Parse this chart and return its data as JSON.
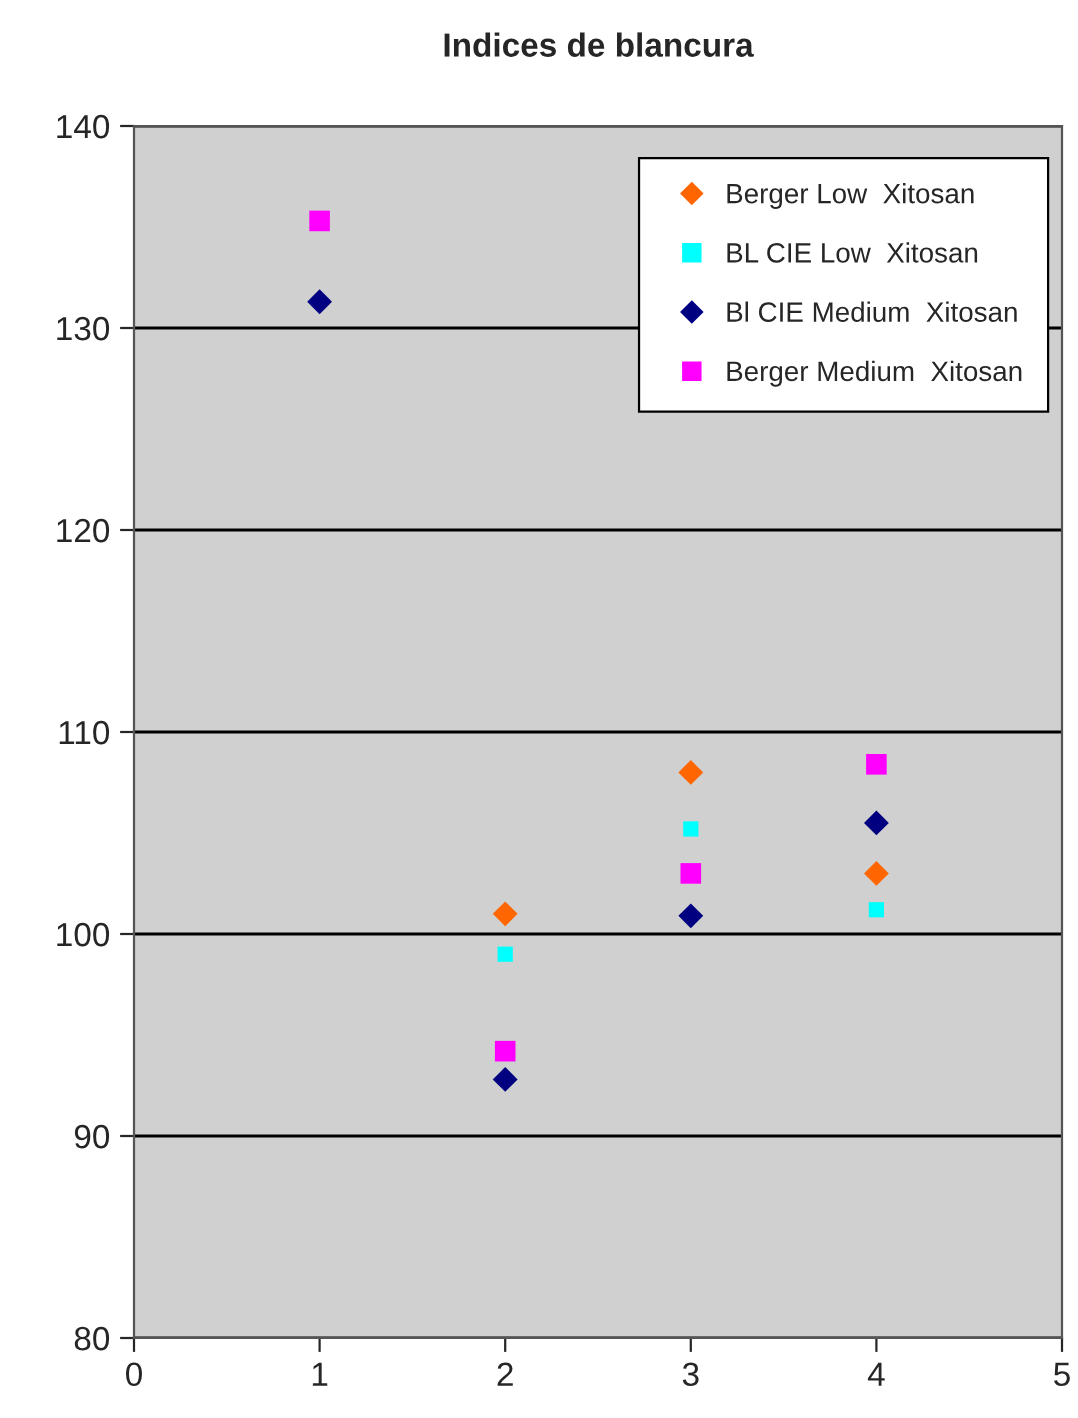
{
  "chart_data": {
    "type": "scatter",
    "title": "Indices de blancura",
    "x": [
      1,
      2,
      3,
      4
    ],
    "series": [
      {
        "name": "Berger Low  Xitosan",
        "color": "#ff6600",
        "marker": "diamond",
        "values": [
          null,
          101.0,
          108.0,
          103.0
        ]
      },
      {
        "name": "BL CIE Low  Xitosan",
        "color": "#00ffff",
        "marker": "square",
        "values": [
          null,
          99.0,
          105.2,
          101.2
        ]
      },
      {
        "name": "Bl CIE Medium  Xitosan",
        "color": "#000080",
        "marker": "diamond",
        "values": [
          131.3,
          92.8,
          100.9,
          105.5
        ]
      },
      {
        "name": "Berger Medium  Xitosan",
        "color": "#ff00ff",
        "marker": "square",
        "values": [
          135.3,
          94.2,
          103.0,
          108.4
        ]
      }
    ],
    "xlim": [
      0,
      5
    ],
    "xticks": [
      0,
      1,
      2,
      3,
      4,
      5
    ],
    "ylim": [
      80,
      140
    ],
    "yticks": [
      80,
      90,
      100,
      110,
      120,
      130,
      140
    ],
    "grid": "y",
    "legend": "top right"
  }
}
